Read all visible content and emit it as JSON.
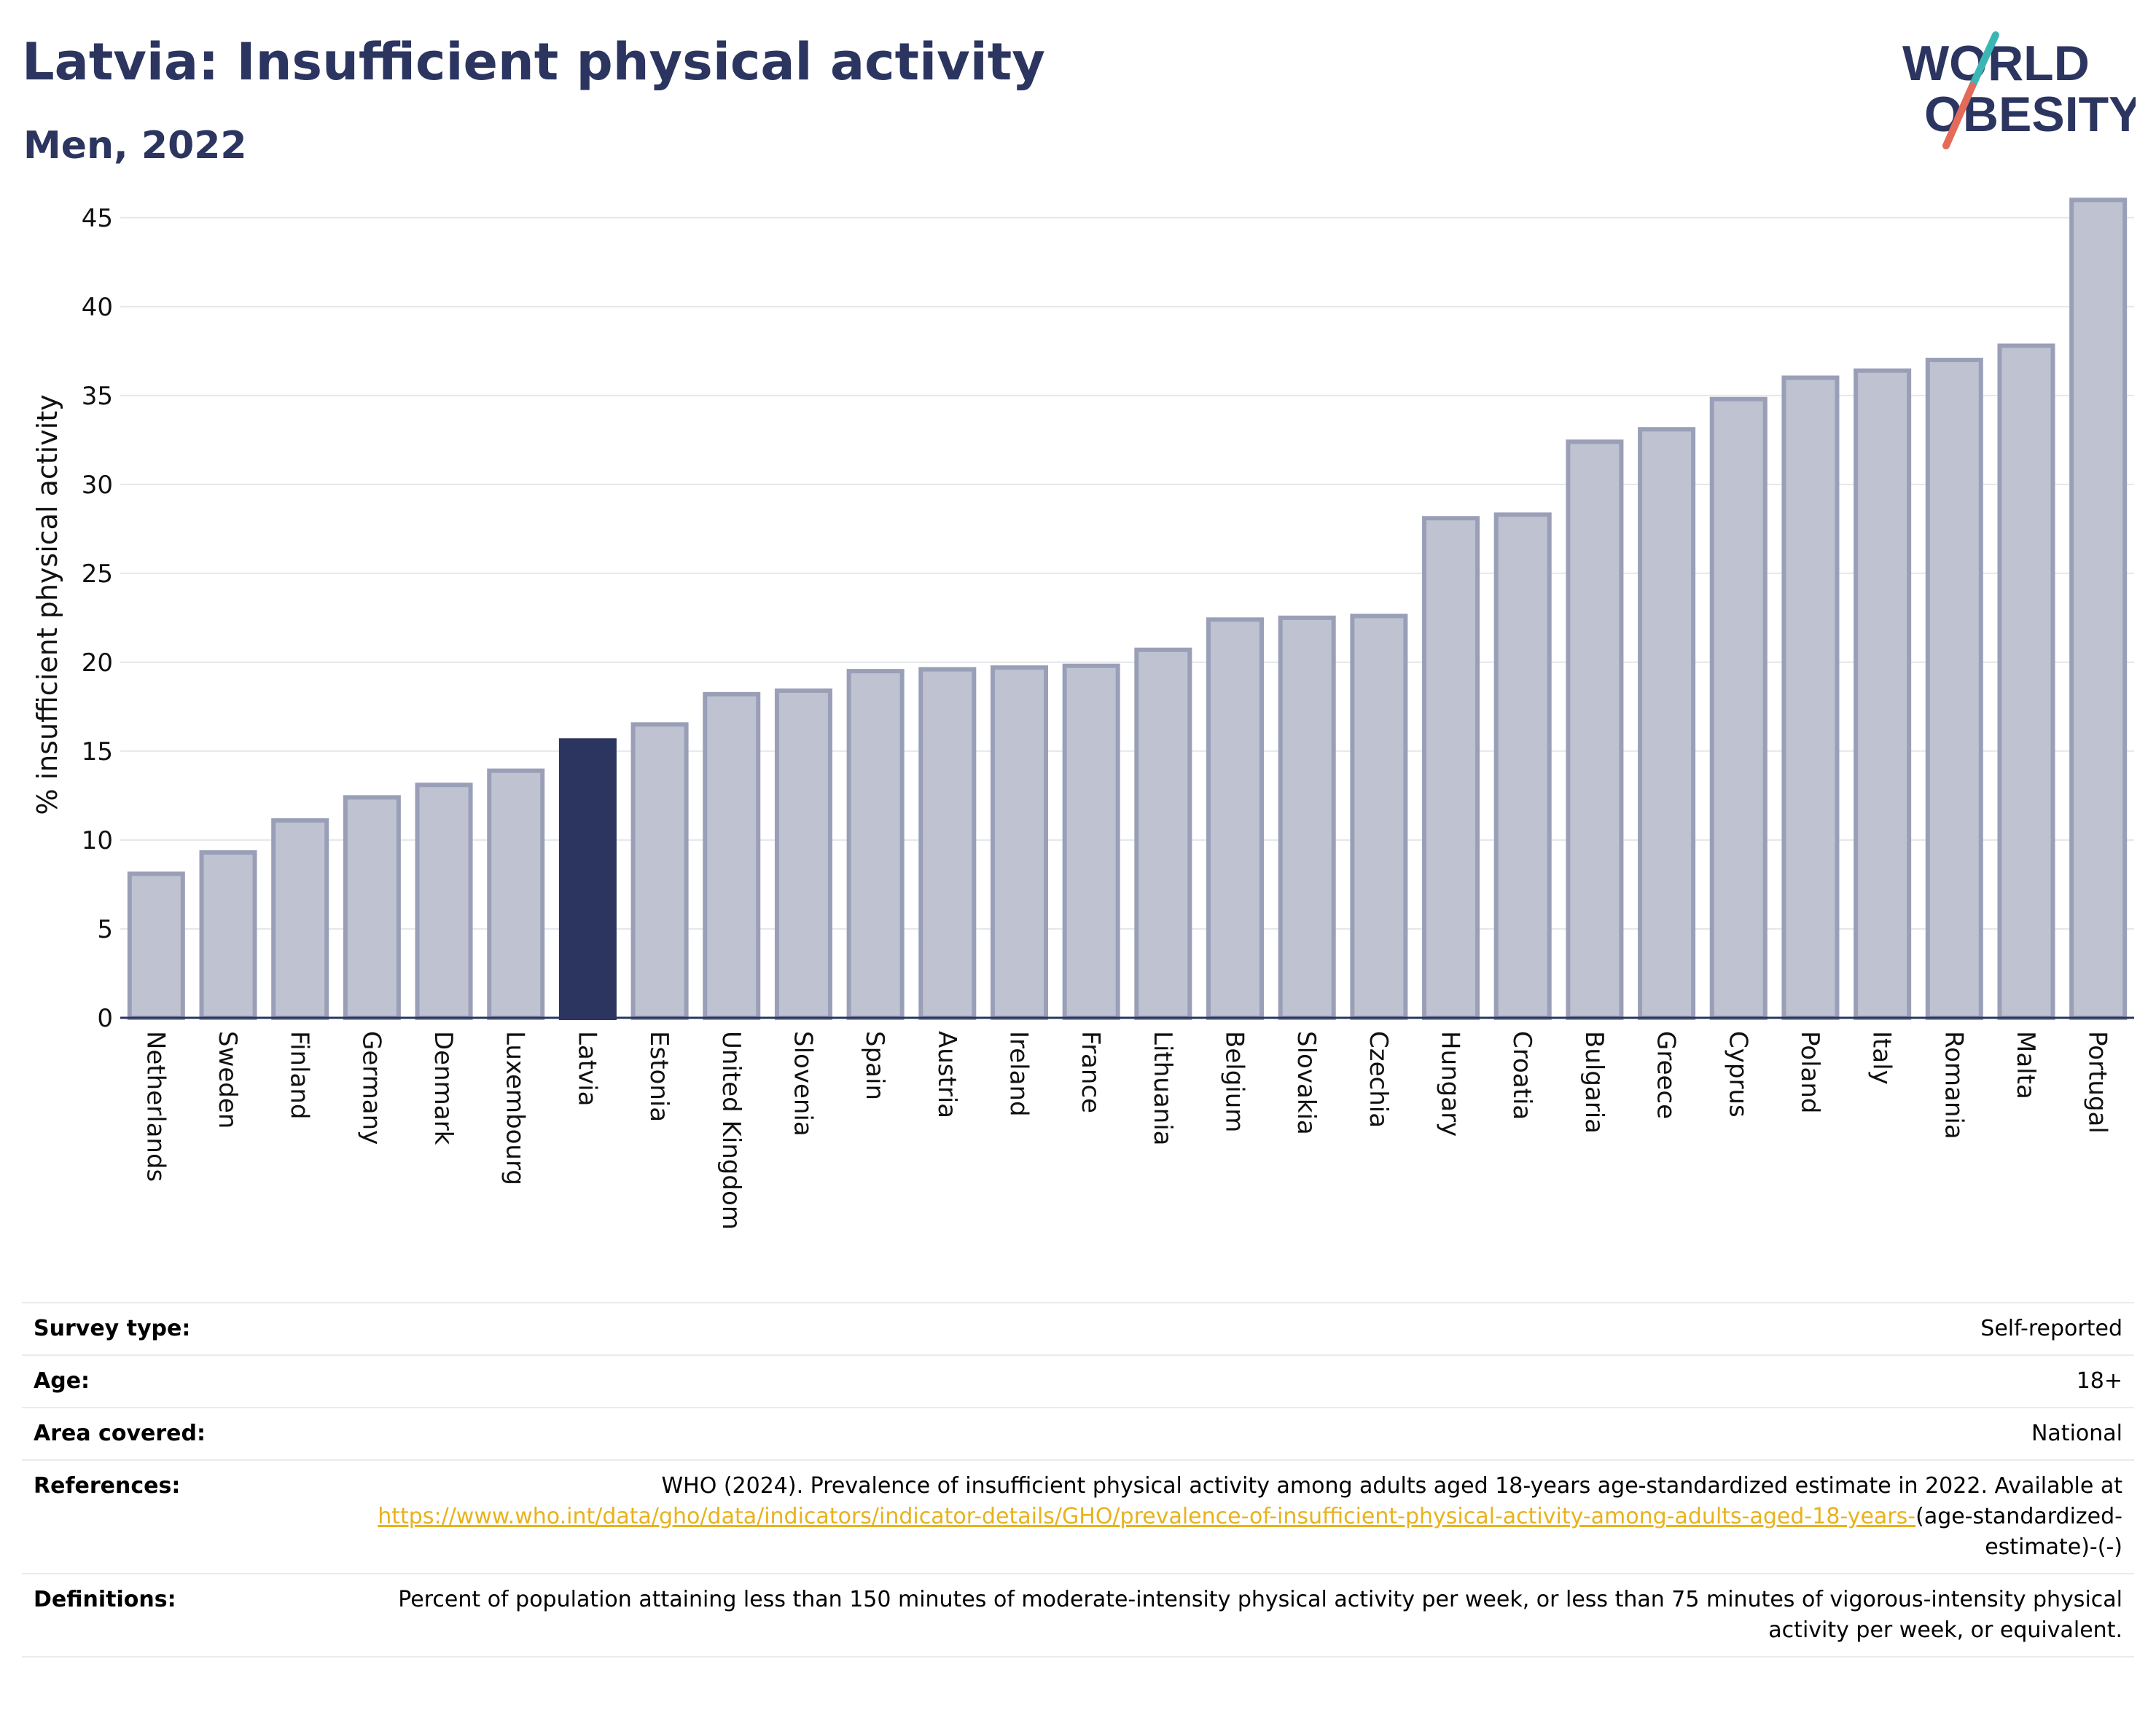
{
  "header": {
    "title": "Latvia: Insufficient physical activity",
    "subtitle": "Men, 2022"
  },
  "logo": {
    "line1": "WORLD",
    "line2": "OBESITY",
    "colors": {
      "text": "#2b3560",
      "slash_teal": "#3bb6b5",
      "slash_red": "#e46a5a"
    }
  },
  "colors": {
    "highlight": "#2b3560",
    "bar_fill": "#bfc2d0",
    "bar_stroke": "#9a9fb8",
    "grid": "#e6e7ec",
    "link": "#e8b21c"
  },
  "chart_data": {
    "type": "bar",
    "ylabel": "% insufficient physical activity",
    "xlabel": "",
    "ylim": [
      0,
      47
    ],
    "yticks": [
      0,
      5,
      10,
      15,
      20,
      25,
      30,
      35,
      40,
      45
    ],
    "grid": true,
    "highlight": "Latvia",
    "categories": [
      "Netherlands",
      "Sweden",
      "Finland",
      "Germany",
      "Denmark",
      "Luxembourg",
      "Latvia",
      "Estonia",
      "United Kingdom",
      "Slovenia",
      "Spain",
      "Austria",
      "Ireland",
      "France",
      "Lithuania",
      "Belgium",
      "Slovakia",
      "Czechia",
      "Hungary",
      "Croatia",
      "Bulgaria",
      "Greece",
      "Cyprus",
      "Poland",
      "Italy",
      "Romania",
      "Malta",
      "Portugal"
    ],
    "values": [
      8.1,
      9.3,
      11.1,
      12.4,
      13.1,
      13.9,
      15.6,
      16.5,
      18.2,
      18.4,
      19.5,
      19.6,
      19.7,
      19.8,
      20.7,
      22.4,
      22.5,
      22.6,
      28.1,
      28.3,
      32.4,
      33.1,
      34.8,
      36.0,
      36.4,
      37.0,
      37.8,
      46.0
    ]
  },
  "meta": {
    "survey_type": {
      "label": "Survey type:",
      "value": "Self-reported"
    },
    "age": {
      "label": "Age:",
      "value": "18+"
    },
    "area": {
      "label": "Area covered:",
      "value": "National"
    },
    "references": {
      "label": "References:",
      "text": "WHO (2024). Prevalence of insufficient physical activity among adults aged 18-years age-standardized estimate in 2022. Available at",
      "link": "https://www.who.int/data/gho/data/indicators/indicator-details/GHO/prevalence-of-insufficient-physical-activity-among-adults-aged-18-years-",
      "suffix": "(age-standardized-estimate)-(-)"
    },
    "definitions": {
      "label": "Definitions:",
      "value": "Percent of population attaining less than 150 minutes of moderate-intensity physical activity per week, or less than 75 minutes of vigorous-intensity physical activity per week, or equivalent."
    }
  }
}
